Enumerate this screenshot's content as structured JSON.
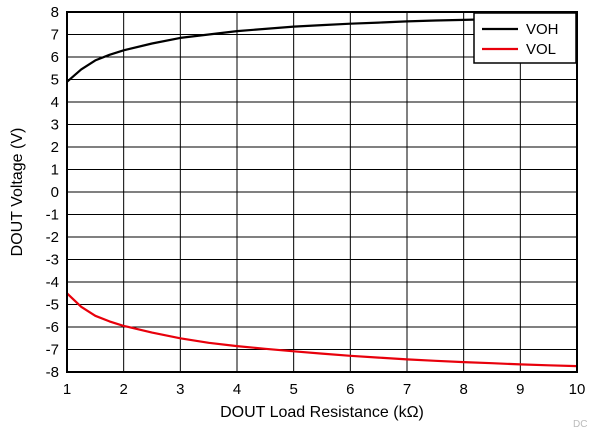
{
  "chart_data": {
    "type": "line",
    "title": "",
    "xlabel": "DOUT Load Resistance (kΩ)",
    "ylabel": "DOUT Voltage (V)",
    "xlim": [
      1,
      10
    ],
    "ylim": [
      -8,
      8
    ],
    "x_ticks": [
      "1",
      "2",
      "3",
      "4",
      "5",
      "6",
      "7",
      "8",
      "9",
      "10"
    ],
    "y_ticks": [
      "8",
      "7",
      "6",
      "5",
      "4",
      "3",
      "2",
      "1",
      "0",
      "-1",
      "-2",
      "-3",
      "-4",
      "-5",
      "-6",
      "-7",
      "-8"
    ],
    "grid": true,
    "legend_position": "top-right",
    "series": [
      {
        "name": "VOH",
        "color": "#000000",
        "x": [
          1,
          1.25,
          1.5,
          1.75,
          2,
          2.5,
          3,
          3.5,
          4,
          4.5,
          5,
          5.5,
          6,
          6.5,
          7,
          7.5,
          8,
          8.5,
          9,
          9.5,
          10
        ],
        "y": [
          4.9,
          5.45,
          5.85,
          6.1,
          6.3,
          6.6,
          6.85,
          7.0,
          7.15,
          7.25,
          7.35,
          7.42,
          7.48,
          7.53,
          7.58,
          7.62,
          7.65,
          7.68,
          7.7,
          7.72,
          7.74
        ]
      },
      {
        "name": "VOL",
        "color": "#e8000b",
        "x": [
          1,
          1.25,
          1.5,
          1.75,
          2,
          2.5,
          3,
          3.5,
          4,
          4.5,
          5,
          5.5,
          6,
          6.5,
          7,
          7.5,
          8,
          8.5,
          9,
          9.5,
          10
        ],
        "y": [
          -4.5,
          -5.1,
          -5.5,
          -5.75,
          -5.95,
          -6.25,
          -6.5,
          -6.7,
          -6.85,
          -6.97,
          -7.08,
          -7.18,
          -7.28,
          -7.36,
          -7.44,
          -7.5,
          -7.56,
          -7.61,
          -7.66,
          -7.7,
          -7.74
        ]
      }
    ]
  },
  "corner_label": "DC"
}
